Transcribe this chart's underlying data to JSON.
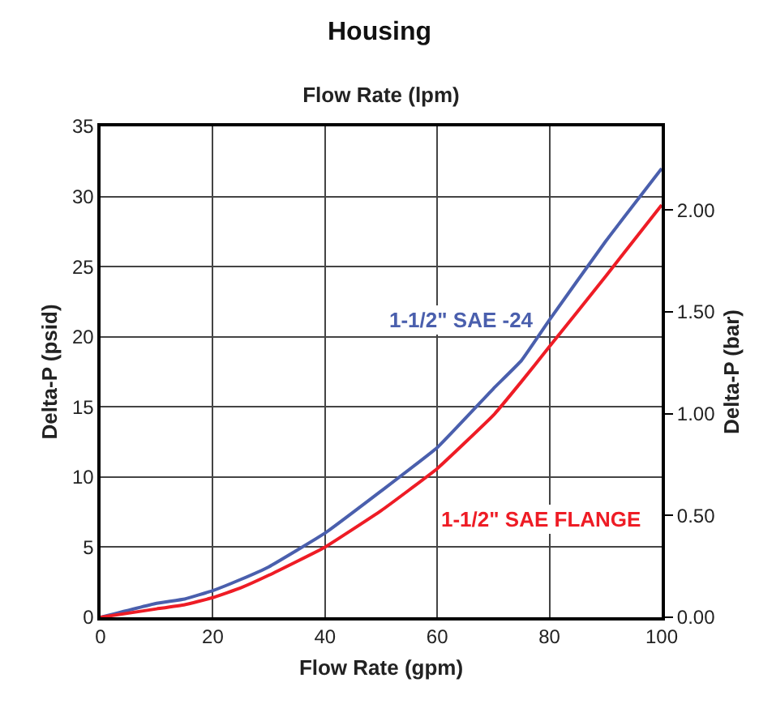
{
  "chart_data": {
    "type": "line",
    "title": "Housing",
    "xlabel": "Flow Rate (gpm)",
    "x2label": "Flow Rate (lpm)",
    "ylabel": "Delta-P (psid)",
    "y2label": "Delta-P (bar)",
    "x": [
      0,
      10,
      15,
      20,
      25,
      30,
      40,
      50,
      60,
      70,
      75,
      80,
      90,
      100
    ],
    "series": [
      {
        "name": "1-1/2\" SAE -24",
        "color": "#4a5fad",
        "values": [
          0,
          1.0,
          1.3,
          1.9,
          2.7,
          3.6,
          6.0,
          9.0,
          12.1,
          16.3,
          18.3,
          21.2,
          26.8,
          32.0
        ]
      },
      {
        "name": "1-1/2\" SAE FLANGE",
        "color": "#ee1c25",
        "values": [
          0,
          0.6,
          0.9,
          1.4,
          2.1,
          3.0,
          5.0,
          7.6,
          10.6,
          14.4,
          16.8,
          19.3,
          24.3,
          29.4
        ]
      }
    ],
    "xlim": [
      0,
      100
    ],
    "xticks": [
      0,
      20,
      40,
      60,
      80,
      100
    ],
    "ylim": [
      0,
      35
    ],
    "yticks": [
      0,
      5,
      10,
      15,
      20,
      25,
      30,
      35
    ],
    "y2lim": [
      0,
      2.41
    ],
    "y2ticks": [
      {
        "value": 0,
        "label": "0.00"
      },
      {
        "value": 0.5,
        "label": "0.50"
      },
      {
        "value": 1,
        "label": "1.00"
      },
      {
        "value": 1.5,
        "label": "1.50"
      },
      {
        "value": 2,
        "label": "2.00"
      }
    ],
    "grid": true,
    "legend": false,
    "line_style": "solid",
    "marker": "none"
  }
}
